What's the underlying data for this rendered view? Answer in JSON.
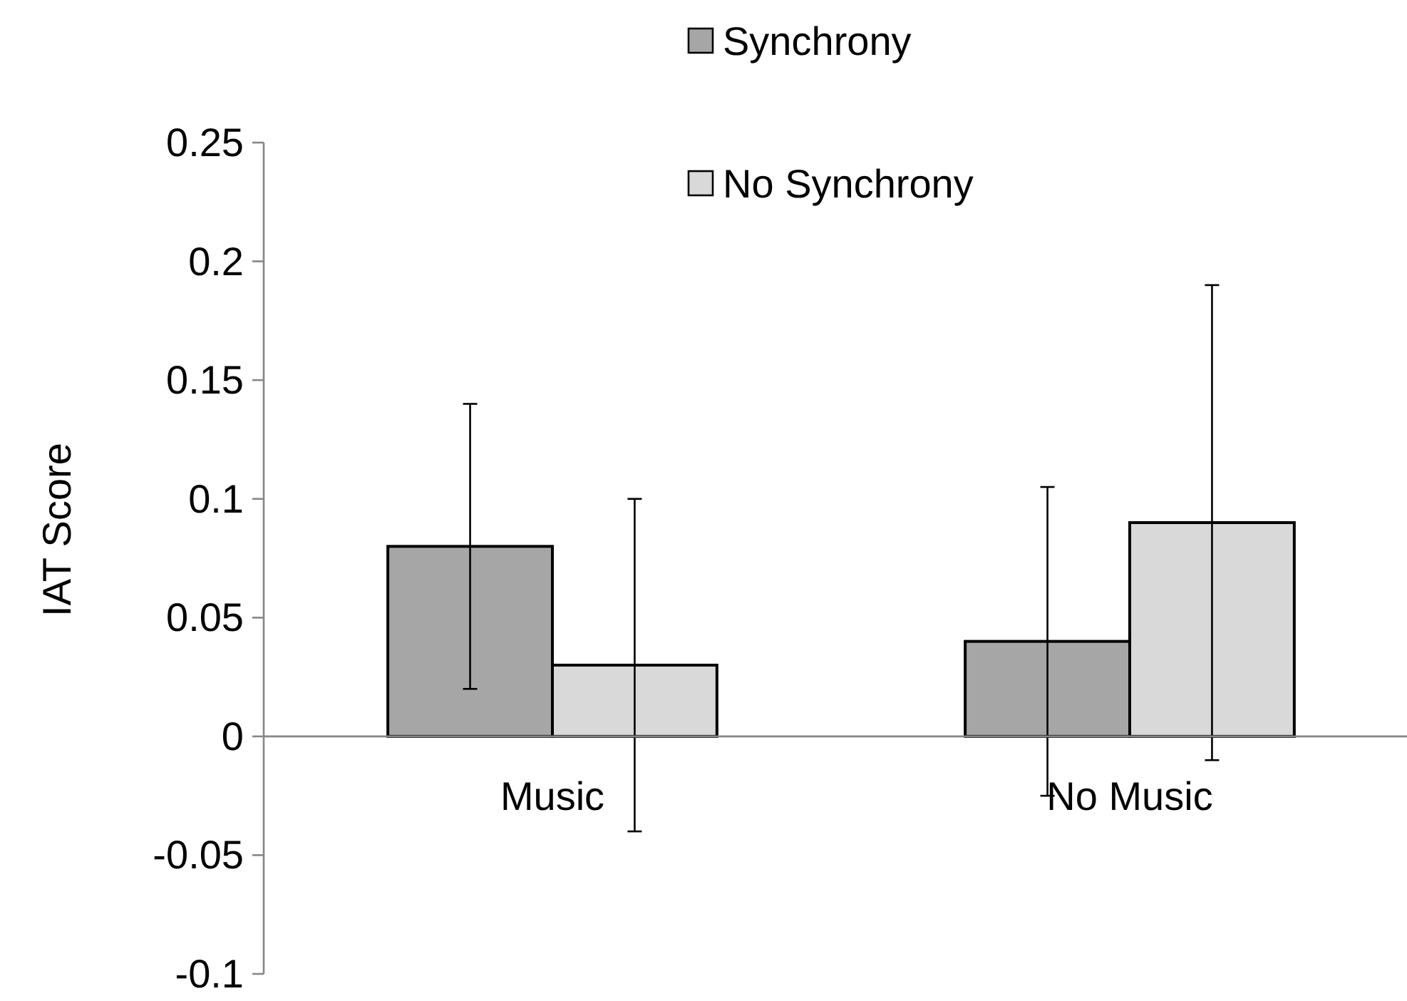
{
  "chart_data": {
    "type": "bar",
    "ylabel": "IAT Score",
    "categories": [
      "Music",
      "No Music"
    ],
    "series": [
      {
        "name": "Synchrony",
        "color": "#a6a6a6",
        "values": [
          0.08,
          0.04
        ],
        "errors": [
          [
            0.02,
            0.14
          ],
          [
            -0.025,
            0.105
          ]
        ]
      },
      {
        "name": "No Synchrony",
        "color": "#d9d9d9",
        "values": [
          0.03,
          0.09
        ],
        "errors": [
          [
            -0.04,
            0.1
          ],
          [
            -0.01,
            0.19
          ]
        ]
      }
    ],
    "ylim": [
      -0.1,
      0.25
    ],
    "yticks": [
      -0.1,
      -0.05,
      0,
      0.05,
      0.1,
      0.15,
      0.2,
      0.25
    ],
    "grid": false,
    "legend": "top"
  }
}
